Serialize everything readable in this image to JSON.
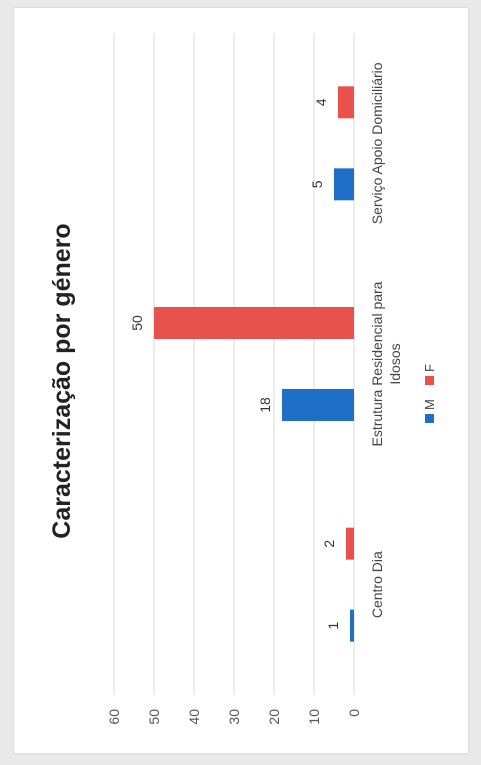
{
  "chart_data": {
    "type": "bar",
    "title": "Caracterização por género",
    "categories": [
      "Centro Dia",
      "Estrutura Residencial para Idosos",
      "Serviço Apoio Domiciliário"
    ],
    "category_lines": [
      [
        "Centro Dia"
      ],
      [
        "Estrutura Residencial para",
        "Idosos"
      ],
      [
        "Serviço Apoio Domiciliário"
      ]
    ],
    "series": [
      {
        "name": "M",
        "values": [
          1,
          18,
          5
        ],
        "color": "#1f6fc8"
      },
      {
        "name": "F",
        "values": [
          2,
          50,
          4
        ],
        "color": "#e8524a"
      }
    ],
    "y_ticks": [
      "0",
      "10",
      "20",
      "30",
      "40",
      "50",
      "60"
    ],
    "ylim": [
      0,
      60
    ],
    "grid": true,
    "legend_position": "bottom"
  }
}
